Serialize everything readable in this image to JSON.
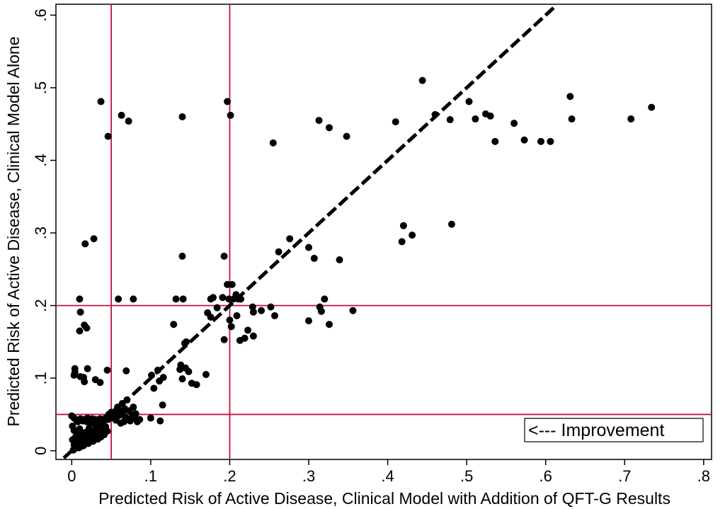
{
  "chart_data": {
    "type": "scatter",
    "title": "",
    "xlabel": "Predicted Risk of Active Disease, Clinical Model with Addition of QFT-G Results",
    "ylabel": "Predicted Risk of Active Disease, Clinical Model Alone",
    "xlim": [
      -0.02,
      0.81
    ],
    "ylim": [
      -0.012,
      0.615
    ],
    "xticks": [
      0,
      0.1,
      0.2,
      0.3,
      0.4,
      0.5,
      0.6,
      0.7,
      0.8
    ],
    "xtick_labels": [
      "0",
      ".1",
      ".2",
      ".3",
      ".4",
      ".5",
      ".6",
      ".7",
      ".8"
    ],
    "yticks": [
      0,
      0.1,
      0.2,
      0.3,
      0.4,
      0.5,
      0.6
    ],
    "ytick_labels": [
      "0",
      ".1",
      ".2",
      ".3",
      ".4",
      ".5",
      ".6"
    ],
    "grid": false,
    "legend": "none",
    "annotation": "<--- Improvement",
    "reference_lines": {
      "vertical": [
        0.05,
        0.2
      ],
      "horizontal": [
        0.05,
        0.2
      ],
      "color": "#c0143c"
    },
    "identity_line": {
      "x": [
        -0.01,
        0.61
      ],
      "y": [
        -0.01,
        0.61
      ],
      "color": "#000000",
      "style": "dashed"
    },
    "marker_color": "#000000",
    "points": [
      [
        0.037,
        0.481
      ],
      [
        0.063,
        0.462
      ],
      [
        0.046,
        0.433
      ],
      [
        0.072,
        0.454
      ],
      [
        0.14,
        0.46
      ],
      [
        0.197,
        0.481
      ],
      [
        0.201,
        0.462
      ],
      [
        0.255,
        0.424
      ],
      [
        0.313,
        0.455
      ],
      [
        0.326,
        0.445
      ],
      [
        0.348,
        0.433
      ],
      [
        0.41,
        0.453
      ],
      [
        0.444,
        0.51
      ],
      [
        0.46,
        0.463
      ],
      [
        0.479,
        0.456
      ],
      [
        0.503,
        0.481
      ],
      [
        0.511,
        0.457
      ],
      [
        0.524,
        0.464
      ],
      [
        0.53,
        0.461
      ],
      [
        0.536,
        0.426
      ],
      [
        0.56,
        0.451
      ],
      [
        0.573,
        0.428
      ],
      [
        0.594,
        0.426
      ],
      [
        0.606,
        0.426
      ],
      [
        0.631,
        0.488
      ],
      [
        0.633,
        0.457
      ],
      [
        0.708,
        0.457
      ],
      [
        0.734,
        0.473
      ],
      [
        0.017,
        0.285
      ],
      [
        0.028,
        0.292
      ],
      [
        0.14,
        0.268
      ],
      [
        0.193,
        0.268
      ],
      [
        0.262,
        0.274
      ],
      [
        0.276,
        0.292
      ],
      [
        0.3,
        0.28
      ],
      [
        0.307,
        0.265
      ],
      [
        0.339,
        0.263
      ],
      [
        0.418,
        0.288
      ],
      [
        0.42,
        0.31
      ],
      [
        0.431,
        0.297
      ],
      [
        0.481,
        0.312
      ],
      [
        0.01,
        0.209
      ],
      [
        0.011,
        0.191
      ],
      [
        0.016,
        0.173
      ],
      [
        0.01,
        0.165
      ],
      [
        0.019,
        0.169
      ],
      [
        0.059,
        0.209
      ],
      [
        0.078,
        0.209
      ],
      [
        0.132,
        0.209
      ],
      [
        0.141,
        0.209
      ],
      [
        0.129,
        0.174
      ],
      [
        0.143,
        0.148
      ],
      [
        0.145,
        0.15
      ],
      [
        0.176,
        0.209
      ],
      [
        0.179,
        0.211
      ],
      [
        0.191,
        0.211
      ],
      [
        0.197,
        0.229
      ],
      [
        0.203,
        0.229
      ],
      [
        0.199,
        0.209
      ],
      [
        0.205,
        0.209
      ],
      [
        0.211,
        0.209
      ],
      [
        0.214,
        0.209
      ],
      [
        0.208,
        0.215
      ],
      [
        0.172,
        0.19
      ],
      [
        0.176,
        0.184
      ],
      [
        0.184,
        0.197
      ],
      [
        0.193,
        0.153
      ],
      [
        0.2,
        0.18
      ],
      [
        0.202,
        0.171
      ],
      [
        0.209,
        0.186
      ],
      [
        0.213,
        0.152
      ],
      [
        0.219,
        0.155
      ],
      [
        0.223,
        0.166
      ],
      [
        0.229,
        0.198
      ],
      [
        0.23,
        0.191
      ],
      [
        0.23,
        0.158
      ],
      [
        0.24,
        0.193
      ],
      [
        0.252,
        0.198
      ],
      [
        0.257,
        0.186
      ],
      [
        0.3,
        0.179
      ],
      [
        0.314,
        0.198
      ],
      [
        0.316,
        0.192
      ],
      [
        0.32,
        0.209
      ],
      [
        0.326,
        0.174
      ],
      [
        0.356,
        0.193
      ],
      [
        0.003,
        0.104
      ],
      [
        0.004,
        0.108
      ],
      [
        0.004,
        0.113
      ],
      [
        0.011,
        0.102
      ],
      [
        0.015,
        0.101
      ],
      [
        0.016,
        0.095
      ],
      [
        0.02,
        0.113
      ],
      [
        0.03,
        0.098
      ],
      [
        0.036,
        0.094
      ],
      [
        0.045,
        0.111
      ],
      [
        0.069,
        0.11
      ],
      [
        0.101,
        0.104
      ],
      [
        0.109,
        0.111
      ],
      [
        0.111,
        0.096
      ],
      [
        0.116,
        0.101
      ],
      [
        0.138,
        0.118
      ],
      [
        0.137,
        0.112
      ],
      [
        0.144,
        0.114
      ],
      [
        0.148,
        0.109
      ],
      [
        0.14,
        0.099
      ],
      [
        0.152,
        0.093
      ],
      [
        0.158,
        0.091
      ],
      [
        0.17,
        0.105
      ],
      [
        0.104,
        0.086
      ],
      [
        0.115,
        0.063
      ],
      [
        0.1,
        0.045
      ],
      [
        0.112,
        0.041
      ],
      [
        0.0,
        0.048
      ],
      [
        0.003,
        0.045
      ],
      [
        0.006,
        0.042
      ],
      [
        0.008,
        0.04
      ],
      [
        0.011,
        0.044
      ],
      [
        0.014,
        0.041
      ],
      [
        0.016,
        0.043
      ],
      [
        0.02,
        0.045
      ],
      [
        0.023,
        0.042
      ],
      [
        0.026,
        0.044
      ],
      [
        0.03,
        0.043
      ],
      [
        0.033,
        0.041
      ],
      [
        0.036,
        0.044
      ],
      [
        0.04,
        0.042
      ],
      [
        0.043,
        0.045
      ],
      [
        0.046,
        0.043
      ],
      [
        0.049,
        0.047
      ],
      [
        0.052,
        0.051
      ],
      [
        0.055,
        0.054
      ],
      [
        0.058,
        0.057
      ],
      [
        0.053,
        0.045
      ],
      [
        0.056,
        0.042
      ],
      [
        0.059,
        0.048
      ],
      [
        0.062,
        0.05
      ],
      [
        0.065,
        0.053
      ],
      [
        0.068,
        0.046
      ],
      [
        0.071,
        0.044
      ],
      [
        0.074,
        0.041
      ],
      [
        0.077,
        0.048
      ],
      [
        0.08,
        0.045
      ],
      [
        0.083,
        0.04
      ],
      [
        0.086,
        0.043
      ],
      [
        0.062,
        0.038
      ],
      [
        0.066,
        0.04
      ],
      [
        0.07,
        0.07
      ],
      [
        0.064,
        0.065
      ],
      [
        0.058,
        0.06
      ],
      [
        0.055,
        0.048
      ],
      [
        0.05,
        0.053
      ],
      [
        0.047,
        0.05
      ],
      [
        0.06,
        0.055
      ],
      [
        0.067,
        0.058
      ],
      [
        0.073,
        0.055
      ],
      [
        0.078,
        0.06
      ],
      [
        0.081,
        0.051
      ],
      [
        0.001,
        0.015
      ],
      [
        0.003,
        0.008
      ],
      [
        0.005,
        0.019
      ],
      [
        0.007,
        0.011
      ],
      [
        0.009,
        0.004
      ],
      [
        0.011,
        0.022
      ],
      [
        0.013,
        0.014
      ],
      [
        0.015,
        0.007
      ],
      [
        0.017,
        0.025
      ],
      [
        0.019,
        0.017
      ],
      [
        0.021,
        0.01
      ],
      [
        0.023,
        0.028
      ],
      [
        0.025,
        0.02
      ],
      [
        0.027,
        0.013
      ],
      [
        0.029,
        0.023
      ],
      [
        0.031,
        0.031
      ],
      [
        0.033,
        0.016
      ],
      [
        0.035,
        0.026
      ],
      [
        0.037,
        0.019
      ],
      [
        0.039,
        0.029
      ],
      [
        0.041,
        0.022
      ],
      [
        0.043,
        0.033
      ],
      [
        0.045,
        0.027
      ],
      [
        0.002,
        0.001
      ],
      [
        0.004,
        0.003
      ],
      [
        0.006,
        0.025
      ],
      [
        0.008,
        0.018
      ],
      [
        0.01,
        0.03
      ],
      [
        0.012,
        0.006
      ],
      [
        0.014,
        0.02
      ],
      [
        0.018,
        0.012
      ],
      [
        0.022,
        0.031
      ],
      [
        0.026,
        0.024
      ],
      [
        0.03,
        0.036
      ],
      [
        0.034,
        0.028
      ],
      [
        0.038,
        0.035
      ],
      [
        0.042,
        0.03
      ],
      [
        0.001,
        0.034
      ],
      [
        0.003,
        0.028
      ],
      [
        0.019,
        0.04
      ],
      [
        0.024,
        0.038
      ],
      [
        0.028,
        0.041
      ],
      [
        0.032,
        0.039
      ],
      [
        0.036,
        0.038
      ],
      [
        0.04,
        0.036
      ]
    ]
  }
}
